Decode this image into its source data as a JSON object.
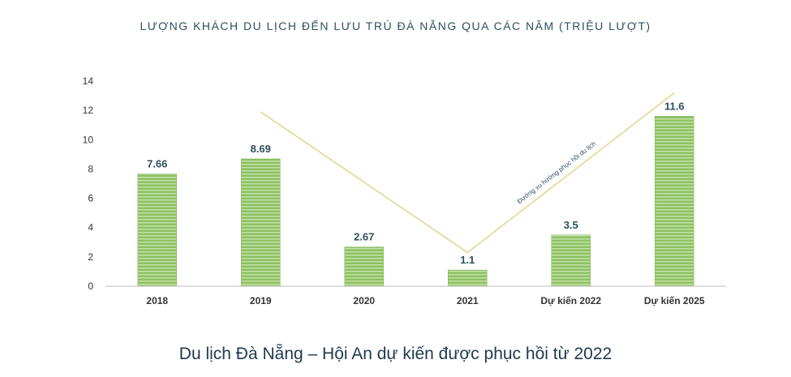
{
  "chart_data": {
    "type": "bar",
    "title": "LƯỢNG KHÁCH DU LỊCH ĐẾN LƯU TRÚ ĐÀ NẴNG QUA CÁC NĂM (TRIỆU LƯỢT)",
    "categories": [
      "2018",
      "2019",
      "2020",
      "2021",
      "Dự kiến 2022",
      "Dự kiến 2025"
    ],
    "values": [
      7.66,
      8.69,
      2.67,
      1.1,
      3.5,
      11.6
    ],
    "data_labels": [
      "7.66",
      "8.69",
      "2.67",
      "1.1",
      "3.5",
      "11.6"
    ],
    "ylim": [
      0,
      14
    ],
    "yticks": [
      0,
      2,
      4,
      6,
      8,
      10,
      12,
      14
    ],
    "grid": false,
    "bar_color": "#8dc063",
    "bar_stripe_color": "#c4e2a6",
    "trend_line": {
      "label": "Đường xu hướng phục hồi du lịch",
      "color": "#e0d58a",
      "points": [
        {
          "x": "2019",
          "y": 11.9
        },
        {
          "x": "2021",
          "y": 2.3
        },
        {
          "x": "Dự kiến 2025",
          "y": 13.2
        }
      ]
    }
  },
  "caption": "Du lịch Đà Nẵng – Hội An dự kiến được phục hồi từ 2022"
}
